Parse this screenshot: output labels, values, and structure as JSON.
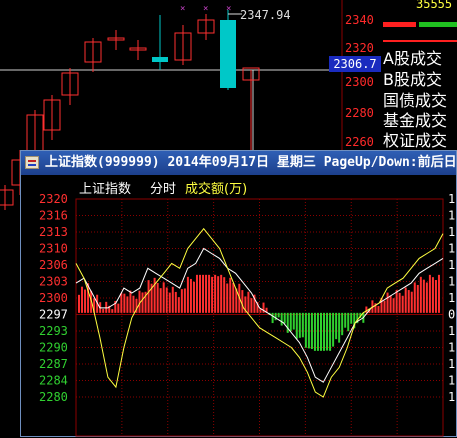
{
  "colors": {
    "up": "#ff3030",
    "down": "#00c8c8",
    "grid": "#8b0000",
    "price_line": "#ffffff",
    "avg_line": "#ffff40",
    "volume_up": "#ff3030",
    "volume_down": "#30d030",
    "title_bar": "#2f5fb5",
    "price_tag_bg": "#1a2bbf"
  },
  "daily_chart": {
    "right_axis_ticks": [
      "2340",
      "2320",
      "2300",
      "2280",
      "2260"
    ],
    "high_label": "2347.94",
    "current_price_tag": "2306.7",
    "side_menu": [
      "A股成交",
      "B股成交",
      "国债成交",
      "基金成交",
      "权证成交"
    ],
    "top_right_text": "35555"
  },
  "popup": {
    "title": "上证指数(999999) 2014年09月17日 星期三 PageUp/Down:前后日",
    "header": {
      "index_name": "上证指数",
      "mode": "分时",
      "metric": "成交额(万)"
    },
    "y_axis_labels": [
      "2320",
      "2316",
      "2313",
      "2310",
      "2306",
      "2303",
      "2300",
      "2297",
      "2293",
      "2290",
      "2287",
      "2284",
      "2280"
    ],
    "baseline_value": "2297"
  },
  "chart_data": {
    "type": "line",
    "title": "上证指数(999999) 2014年09月17日 星期三",
    "xlabel": "",
    "ylabel": "",
    "ylim": [
      2280,
      2320
    ],
    "baseline": 2297,
    "grid": true,
    "series": [
      {
        "name": "",
        "values": [
          2303,
          2304,
          2301,
          2298,
          2298,
          2299,
          2302,
          2301,
          2302,
          2306,
          2305,
          2304,
          2303,
          2302,
          2306,
          2307,
          2310,
          2309,
          2308,
          2306,
          2305,
          2303,
          2301,
          2298,
          2297,
          2296,
          2295,
          2293,
          2291,
          2288,
          2284,
          2283,
          2286,
          2289,
          2292,
          2295,
          2296,
          2298,
          2299,
          2300,
          2301,
          2302,
          2303,
          2305,
          2306,
          2307,
          2308
        ]
      },
      {
        "name": "",
        "values": [
          2307,
          2304,
          2299,
          2292,
          2284,
          2282,
          2290,
          2296,
          2299,
          2301,
          2303,
          2305,
          2307,
          2306,
          2310,
          2312,
          2314,
          2312,
          2310,
          2306,
          2302,
          2298,
          2296,
          2294,
          2293,
          2292,
          2291,
          2290,
          2288,
          2285,
          2281,
          2280,
          2284,
          2286,
          2290,
          2295,
          2297,
          2298,
          2299,
          2302,
          2303,
          2304,
          2306,
          2308,
          2309,
          2310,
          2313
        ]
      }
    ]
  }
}
